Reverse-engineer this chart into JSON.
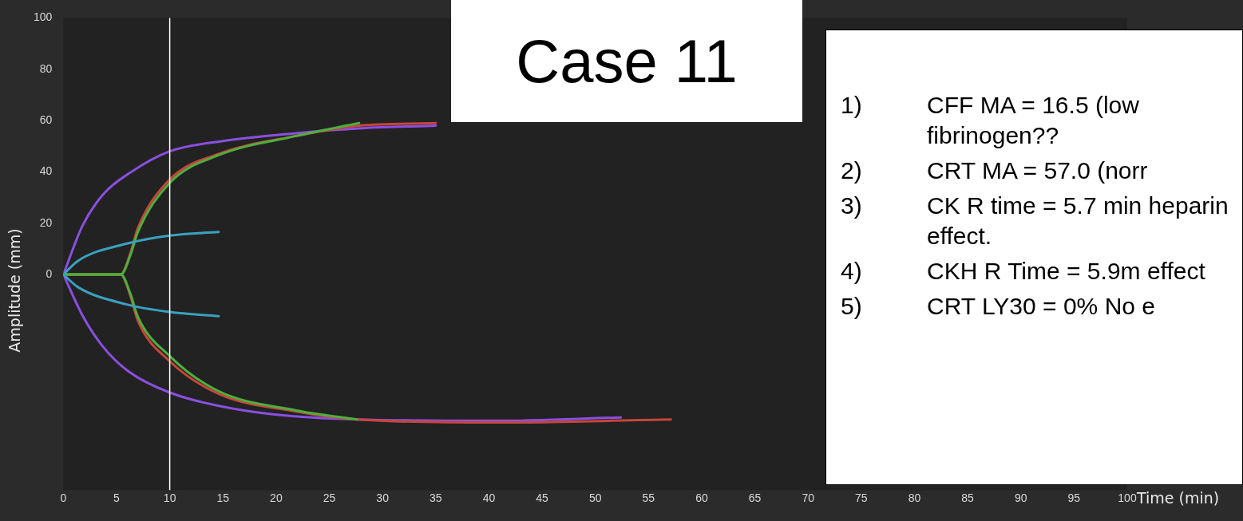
{
  "chart_data": {
    "type": "line",
    "title": "Case 11",
    "xlabel": "Time (min)",
    "ylabel": "Amplitude (mm)",
    "xlim": [
      0,
      100
    ],
    "xticks": [
      0,
      5,
      10,
      15,
      20,
      25,
      30,
      35,
      40,
      45,
      50,
      55,
      60,
      65,
      70,
      75,
      80,
      85,
      90,
      95,
      100
    ],
    "ylim": [
      -84,
      100
    ],
    "yticks": [
      0,
      20,
      40,
      60,
      80,
      100
    ],
    "grid": false,
    "legend": false,
    "marker": "none",
    "line_style": "solid",
    "ref_lines": [
      {
        "axis": "x",
        "value": 10,
        "color": "#ffffff"
      }
    ],
    "series": [
      {
        "color": "#8a4fe0",
        "x": [
          0,
          1.8,
          3.7,
          6.4,
          10,
          15,
          21.7,
          28,
          35
        ],
        "values": [
          0,
          19,
          31,
          40,
          48,
          52,
          55,
          57,
          58
        ]
      },
      {
        "color": "#8a4fe0",
        "x": [
          0,
          1.8,
          3.7,
          6.1,
          10,
          17,
          27.6,
          40.6,
          52.4
        ],
        "values": [
          0,
          -16,
          -28,
          -37.7,
          -46,
          -53,
          -56.5,
          -57,
          -55.7
        ]
      },
      {
        "color": "#c8453a",
        "x": [
          0,
          5.4,
          6.3,
          7,
          10,
          14.6,
          21.9,
          27.8,
          35
        ],
        "values": [
          0,
          0,
          8.3,
          18,
          37,
          47,
          54,
          58,
          59
        ]
      },
      {
        "color": "#c8453a",
        "x": [
          0,
          5.4,
          6.3,
          7,
          10,
          14.6,
          21.9,
          27.6,
          40.6,
          57.1
        ],
        "values": [
          0,
          0,
          -8.3,
          -18,
          -33.8,
          -46.5,
          -53.4,
          -56.5,
          -57.7,
          -56.5
        ]
      },
      {
        "color": "#4caf3e",
        "x": [
          0,
          5.4,
          6.3,
          7,
          10,
          14.6,
          21.9,
          27.8
        ],
        "values": [
          0,
          0,
          7.5,
          16.5,
          35.7,
          46.5,
          54,
          59
        ]
      },
      {
        "color": "#4caf3e",
        "x": [
          0,
          5.4,
          6.3,
          7,
          10,
          14.6,
          21.9,
          27.6
        ],
        "values": [
          0,
          0,
          -7.5,
          -16.5,
          -31.8,
          -45.5,
          -53,
          -56.5
        ]
      },
      {
        "color": "#3aa0c0",
        "x": [
          0,
          1.4,
          5.9,
          10,
          14.6
        ],
        "values": [
          0,
          5.4,
          12,
          15.2,
          16.6
        ]
      },
      {
        "color": "#3aa0c0",
        "x": [
          0,
          1.4,
          5.9,
          10,
          14.6
        ],
        "values": [
          0,
          -5,
          -11.6,
          -14.6,
          -16.2
        ]
      }
    ],
    "annotations": [
      "1)\tCFF MA = 16.5 (low fibrinogen??",
      "2)\tCRT MA = 57.0 (norr",
      "3)\tCK R time = 5.7 min heparin effect.",
      "4)\tCKH R Time = 5.9m effect",
      "5)\tCRT LY30 = 0% No e"
    ]
  }
}
